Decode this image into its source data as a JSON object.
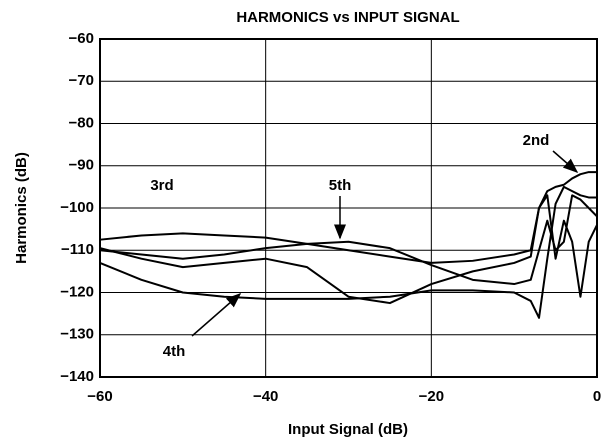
{
  "chart_data": {
    "type": "line",
    "title": "HARMONICS vs INPUT SIGNAL",
    "x_label": "Input Signal (dB)",
    "y_label": "Harmonics (dB)",
    "x": [
      -60,
      -55,
      -50,
      -45,
      -40,
      -35,
      -30,
      -25,
      -20,
      -15,
      -10,
      -8,
      -7,
      -6,
      -5,
      -4,
      -3,
      -2,
      -1,
      0
    ],
    "series": [
      {
        "name": "2nd",
        "color": "#000000",
        "values": [
          -107.5,
          -106.5,
          -106,
          -106.5,
          -107,
          -108.5,
          -110,
          -111.5,
          -113,
          -112.5,
          -111,
          -110,
          -100,
          -96,
          -95,
          -94.5,
          -93,
          -92,
          -91.5,
          -91.5
        ]
      },
      {
        "name": "3rd",
        "color": "#000000",
        "values": [
          -109.5,
          -112,
          -114,
          -113,
          -112,
          -114,
          -121,
          -122.5,
          -118,
          -115,
          -113,
          -111.5,
          -100,
          -97,
          -112,
          -103,
          -108,
          -121,
          -108,
          -104
        ]
      },
      {
        "name": "4th",
        "color": "#000000",
        "values": [
          -113,
          -117,
          -120,
          -121,
          -121.5,
          -121.5,
          -121.5,
          -121,
          -119.5,
          -119.5,
          -120,
          -122,
          -126,
          -112,
          -99,
          -95,
          -96,
          -97,
          -97.5,
          -97.5
        ]
      },
      {
        "name": "5th",
        "color": "#000000",
        "values": [
          -110,
          -111,
          -112,
          -111,
          -109.5,
          -108.5,
          -108,
          -109.5,
          -113.5,
          -117,
          -118,
          -117,
          -110,
          -103,
          -110,
          -108,
          -97,
          -98,
          -100,
          -102
        ]
      }
    ],
    "xlim": [
      -60,
      0
    ],
    "xticks": [
      {
        "value": -60,
        "label": "−60"
      },
      {
        "value": -40,
        "label": "−40"
      },
      {
        "value": -20,
        "label": "−20"
      },
      0
    ],
    "ylim": [
      -140,
      -60
    ],
    "yticks": [
      {
        "value": -140,
        "label": "−140"
      },
      {
        "value": -130,
        "label": "−130"
      },
      {
        "value": -120,
        "label": "−120"
      },
      {
        "value": -110,
        "label": "−110"
      },
      {
        "value": -100,
        "label": "−100"
      },
      {
        "value": -90,
        "label": "−90"
      },
      {
        "value": -80,
        "label": "−80"
      },
      {
        "value": -70,
        "label": "−70"
      },
      {
        "value": -60,
        "label": "−60"
      }
    ],
    "grid": true
  }
}
